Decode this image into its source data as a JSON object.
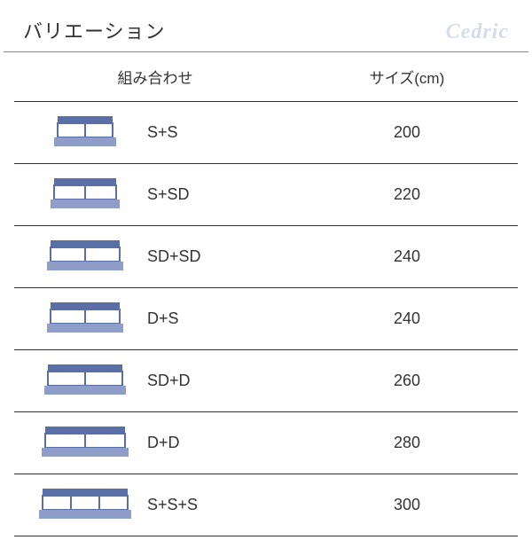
{
  "title": "バリエーション",
  "brand": "Cedric",
  "columns": {
    "combination": "組み合わせ",
    "size": "サイズ(cm)"
  },
  "icon_style": {
    "headboard_color": "#5a6fa8",
    "mattress_fill": "#ffffff",
    "mattress_stroke": "#5a6fa8",
    "base_color": "#8e9ec9",
    "stroke_width": 2
  },
  "rows": [
    {
      "label": "S+S",
      "size": "200",
      "panels": 2,
      "total_width": 64
    },
    {
      "label": "S+SD",
      "size": "220",
      "panels": 2,
      "total_width": 72
    },
    {
      "label": "SD+SD",
      "size": "240",
      "panels": 2,
      "total_width": 80
    },
    {
      "label": "D+S",
      "size": "240",
      "panels": 2,
      "total_width": 80
    },
    {
      "label": "SD+D",
      "size": "260",
      "panels": 2,
      "total_width": 86
    },
    {
      "label": "D+D",
      "size": "280",
      "panels": 2,
      "total_width": 92
    },
    {
      "label": "S+S+S",
      "size": "300",
      "panels": 3,
      "total_width": 98
    }
  ]
}
